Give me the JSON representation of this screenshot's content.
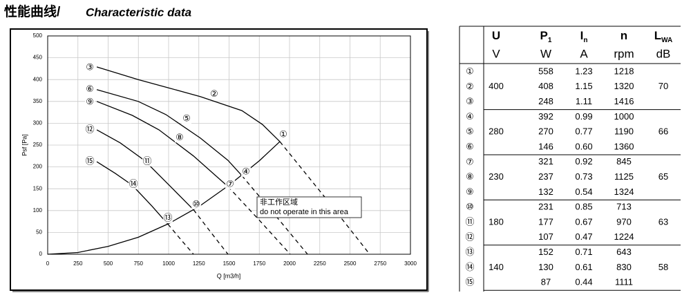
{
  "chart_data": {
    "type": "line",
    "title": "性能曲线/",
    "subtitle": "Characteristic data",
    "x_label": "Q [m3/h]",
    "y_label": "Psf [Pa]",
    "xlim": [
      0,
      3000
    ],
    "xticks": [
      0,
      250,
      500,
      750,
      1000,
      1250,
      1500,
      1750,
      2000,
      2250,
      2500,
      2750,
      3000
    ],
    "ylim": [
      0,
      500
    ],
    "yticks": [
      0,
      50,
      100,
      150,
      200,
      250,
      300,
      350,
      400,
      450,
      500
    ],
    "grid": true,
    "color": "#000000",
    "series": [
      {
        "x": [
          406,
          749,
          1263,
          1606,
          1777,
          1920
        ],
        "values": [
          429,
          400,
          361,
          329,
          297,
          258
        ],
        "dashed": false
      },
      {
        "x": [
          1920,
          2291,
          2663
        ],
        "values": [
          258,
          131,
          0
        ],
        "dashed": true
      },
      {
        "x": [
          406,
          749,
          977,
          1263,
          1491,
          1606
        ],
        "values": [
          377,
          350,
          320,
          266,
          215,
          180
        ],
        "dashed": false
      },
      {
        "x": [
          1606,
          1880,
          2149
        ],
        "values": [
          180,
          90,
          0
        ],
        "dashed": true
      },
      {
        "x": [
          406,
          700,
          920,
          1206,
          1491
        ],
        "values": [
          350,
          318,
          285,
          225,
          155
        ],
        "dashed": false
      },
      {
        "x": [
          1491,
          1750,
          2006
        ],
        "values": [
          155,
          78,
          0
        ],
        "dashed": true
      },
      {
        "x": [
          406,
          600,
          800,
          1034,
          1206
        ],
        "values": [
          285,
          255,
          215,
          150,
          102
        ],
        "dashed": false
      },
      {
        "x": [
          1206,
          1350,
          1491
        ],
        "values": [
          102,
          50,
          0
        ],
        "dashed": true
      },
      {
        "x": [
          406,
          560,
          700,
          863,
          994
        ],
        "values": [
          212,
          185,
          158,
          110,
          69
        ],
        "dashed": false
      },
      {
        "x": [
          994,
          1100,
          1206
        ],
        "values": [
          69,
          34,
          0
        ],
        "dashed": true
      },
      {
        "x": [
          0,
          250,
          500,
          750,
          1000,
          1250,
          1500,
          1750,
          1920
        ],
        "values": [
          0,
          4,
          18,
          39,
          70,
          109,
          158,
          214,
          258
        ],
        "dashed": false
      }
    ],
    "annotations": [
      {
        "text": "③",
        "x": 349,
        "y": 427
      },
      {
        "text": "②",
        "x": 1377,
        "y": 366
      },
      {
        "text": "①",
        "x": 1949,
        "y": 274
      },
      {
        "text": "⑥",
        "x": 349,
        "y": 377
      },
      {
        "text": "⑤",
        "x": 1149,
        "y": 310
      },
      {
        "text": "④",
        "x": 1640,
        "y": 188
      },
      {
        "text": "⑨",
        "x": 349,
        "y": 348
      },
      {
        "text": "⑧",
        "x": 1091,
        "y": 267
      },
      {
        "text": "⑦",
        "x": 1509,
        "y": 160
      },
      {
        "text": "⑫",
        "x": 349,
        "y": 285
      },
      {
        "text": "⑪",
        "x": 823,
        "y": 212
      },
      {
        "text": "⑩",
        "x": 1229,
        "y": 114
      },
      {
        "text": "⑮",
        "x": 349,
        "y": 212
      },
      {
        "text": "⑭",
        "x": 709,
        "y": 160
      },
      {
        "text": "⑬",
        "x": 994,
        "y": 82
      }
    ],
    "note": [
      "非工作区域",
      "do not operate in this area"
    ]
  },
  "table": {
    "header": [
      {
        "text": "U"
      },
      {
        "text": "P",
        "sub": "1"
      },
      {
        "text": "I",
        "sub": "n"
      },
      {
        "text": "n"
      },
      {
        "text": "L",
        "sub": "WA"
      }
    ],
    "units": [
      "V",
      "W",
      "A",
      "rpm",
      "dB"
    ],
    "groups": [
      {
        "U": "400",
        "LWA": "70",
        "rows": [
          [
            "①",
            "558",
            "1.23",
            "1218"
          ],
          [
            "②",
            "408",
            "1.15",
            "1320"
          ],
          [
            "③",
            "248",
            "1.11",
            "1416"
          ]
        ]
      },
      {
        "U": "280",
        "LWA": "66",
        "rows": [
          [
            "④",
            "392",
            "0.99",
            "1000"
          ],
          [
            "⑤",
            "270",
            "0.77",
            "1190"
          ],
          [
            "⑥",
            "146",
            "0.60",
            "1360"
          ]
        ]
      },
      {
        "U": "230",
        "LWA": "65",
        "rows": [
          [
            "⑦",
            "321",
            "0.92",
            "845"
          ],
          [
            "⑧",
            "237",
            "0.73",
            "1125"
          ],
          [
            "⑨",
            "132",
            "0.54",
            "1324"
          ]
        ]
      },
      {
        "U": "180",
        "LWA": "63",
        "rows": [
          [
            "⑩",
            "231",
            "0.85",
            "713"
          ],
          [
            "⑪",
            "177",
            "0.67",
            "970"
          ],
          [
            "⑫",
            "107",
            "0.47",
            "1224"
          ]
        ]
      },
      {
        "U": "140",
        "LWA": "58",
        "rows": [
          [
            "⑬",
            "152",
            "0.71",
            "643"
          ],
          [
            "⑭",
            "130",
            "0.61",
            "830"
          ],
          [
            "⑮",
            "87",
            "0.44",
            "1111"
          ]
        ]
      }
    ]
  }
}
